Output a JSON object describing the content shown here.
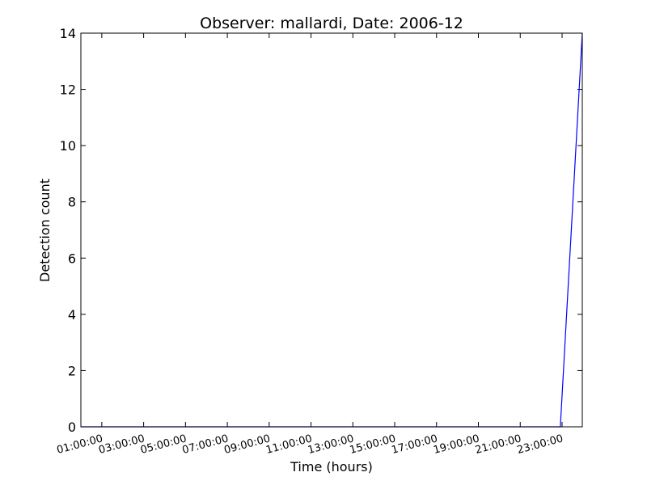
{
  "chart_data": {
    "type": "line",
    "title": "Observer: mallardi, Date: 2006-12",
    "xlabel": "Time (hours)",
    "ylabel": "Detection count",
    "x_tick_labels": [
      "01:00:00",
      "03:00:00",
      "05:00:00",
      "07:00:00",
      "09:00:00",
      "11:00:00",
      "13:00:00",
      "15:00:00",
      "17:00:00",
      "19:00:00",
      "21:00:00",
      "23:00:00"
    ],
    "y_ticks": [
      0,
      2,
      4,
      6,
      8,
      10,
      12,
      14
    ],
    "xlim": [
      "00:00:00",
      "23:58:00"
    ],
    "ylim": [
      0,
      14
    ],
    "grid": false,
    "series": [
      {
        "color": "#0000ff",
        "x": [
          "00:00:00",
          "00:30:00",
          "01:00:00",
          "02:00:00",
          "03:00:00",
          "04:00:00",
          "05:00:00",
          "06:00:00",
          "07:00:00",
          "08:00:00",
          "09:00:00",
          "10:00:00",
          "11:00:00",
          "12:00:00",
          "13:00:00",
          "14:00:00",
          "15:00:00",
          "16:00:00",
          "17:00:00",
          "18:00:00",
          "19:00:00",
          "20:00:00",
          "21:00:00",
          "22:00:00",
          "22:55:00",
          "23:58:00"
        ],
        "y": [
          0,
          0,
          0,
          0,
          0,
          0,
          0,
          0,
          0,
          0,
          0,
          0,
          0,
          0,
          0,
          0,
          0,
          0,
          0,
          0,
          0,
          0,
          0,
          0,
          0,
          14
        ]
      }
    ]
  }
}
